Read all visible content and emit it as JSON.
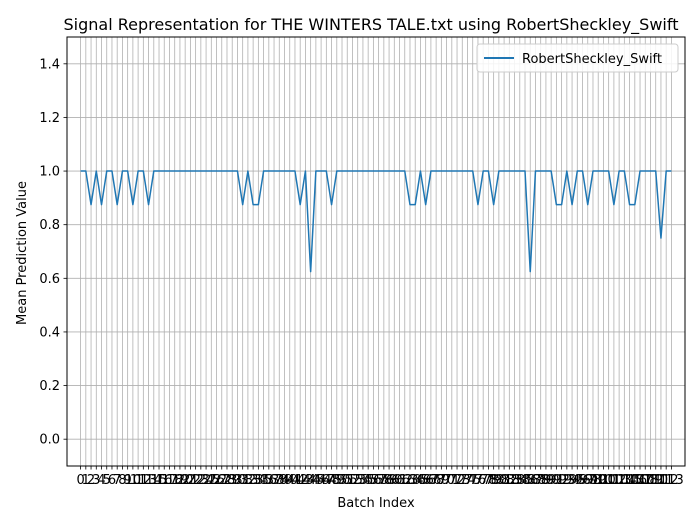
{
  "chart_data": {
    "type": "line",
    "title": "Signal Representation for THE WINTERS TALE.txt using RobertSheckley_Swift",
    "xlabel": "Batch Index",
    "ylabel": "Mean Prediction Value",
    "ylim": [
      -0.1,
      1.5
    ],
    "xlim": [
      -2.6,
      115.6
    ],
    "yticks": [
      0.0,
      0.2,
      0.4,
      0.6,
      0.8,
      1.0,
      1.2,
      1.4
    ],
    "ytick_labels": [
      "0.0",
      "0.2",
      "0.4",
      "0.6",
      "0.8",
      "1.0",
      "1.2",
      "1.4"
    ],
    "grid": true,
    "legend_position": "upper right",
    "series": [
      {
        "name": "RobertSheckley_Swift",
        "color": "#1f77b4",
        "x": [
          0,
          1,
          2,
          3,
          4,
          5,
          6,
          7,
          8,
          9,
          10,
          11,
          12,
          13,
          14,
          15,
          16,
          17,
          18,
          19,
          20,
          21,
          22,
          23,
          24,
          25,
          26,
          27,
          28,
          29,
          30,
          31,
          32,
          33,
          34,
          35,
          36,
          37,
          38,
          39,
          40,
          41,
          42,
          43,
          44,
          45,
          46,
          47,
          48,
          49,
          50,
          51,
          52,
          53,
          54,
          55,
          56,
          57,
          58,
          59,
          60,
          61,
          62,
          63,
          64,
          65,
          66,
          67,
          68,
          69,
          70,
          71,
          72,
          73,
          74,
          75,
          76,
          77,
          78,
          79,
          80,
          81,
          82,
          83,
          84,
          85,
          86,
          87,
          88,
          89,
          90,
          91,
          92,
          93,
          94,
          95,
          96,
          97,
          98,
          99,
          100,
          101,
          102,
          103,
          104,
          105,
          106,
          107,
          108,
          109,
          110,
          111,
          112,
          113
        ],
        "values": [
          1.0,
          1.0,
          0.875,
          1.0,
          0.875,
          1.0,
          1.0,
          0.875,
          1.0,
          1.0,
          0.875,
          1.0,
          1.0,
          0.875,
          1.0,
          1.0,
          1.0,
          1.0,
          1.0,
          1.0,
          1.0,
          1.0,
          1.0,
          1.0,
          1.0,
          1.0,
          1.0,
          1.0,
          1.0,
          1.0,
          1.0,
          0.875,
          1.0,
          0.875,
          0.875,
          1.0,
          1.0,
          1.0,
          1.0,
          1.0,
          1.0,
          1.0,
          0.875,
          1.0,
          0.625,
          1.0,
          1.0,
          1.0,
          0.875,
          1.0,
          1.0,
          1.0,
          1.0,
          1.0,
          1.0,
          1.0,
          1.0,
          1.0,
          1.0,
          1.0,
          1.0,
          1.0,
          1.0,
          0.875,
          0.875,
          1.0,
          0.875,
          1.0,
          1.0,
          1.0,
          1.0,
          1.0,
          1.0,
          1.0,
          1.0,
          1.0,
          0.875,
          1.0,
          1.0,
          0.875,
          1.0,
          1.0,
          1.0,
          1.0,
          1.0,
          1.0,
          0.625,
          1.0,
          1.0,
          1.0,
          1.0,
          0.875,
          0.875,
          1.0,
          0.875,
          1.0,
          1.0,
          0.875,
          1.0,
          1.0,
          1.0,
          1.0,
          0.875,
          1.0,
          1.0,
          0.875,
          0.875,
          1.0,
          1.0,
          1.0,
          1.0,
          0.75,
          1.0,
          1.0
        ]
      }
    ]
  }
}
